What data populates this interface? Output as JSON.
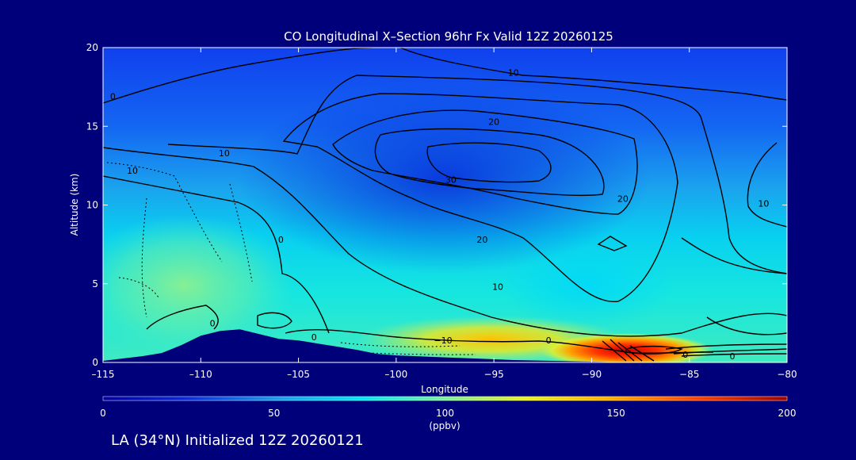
{
  "chart_data": {
    "type": "heatmap",
    "title": "CO Longitudinal X–Section 96hr  Fx Valid 12Z 20260125",
    "xlabel": "Longitude",
    "ylabel": "Altitude (km)",
    "xlim": [
      -115,
      -80
    ],
    "ylim": [
      0,
      20
    ],
    "x_ticks": [
      -115,
      -110,
      -105,
      -100,
      -95,
      -90,
      -85,
      -80
    ],
    "x_tick_labels": [
      "–115",
      "–110",
      "–105",
      "–100",
      "−95",
      "−90",
      "−85",
      "−80"
    ],
    "y_ticks": [
      0,
      5,
      10,
      15,
      20
    ],
    "y_tick_labels": [
      "0",
      "5",
      "10",
      "15",
      "20"
    ],
    "colorbar": {
      "min": 0,
      "max": 200,
      "ticks": [
        0,
        50,
        100,
        150,
        200
      ],
      "tick_labels": [
        "0",
        "50",
        "100",
        "150",
        "200"
      ],
      "units": "(ppbv)"
    },
    "contour_levels": [
      0,
      10,
      20,
      30
    ],
    "contour_labels": [
      {
        "text": "10",
        "lon": -94,
        "alt": 18.2
      },
      {
        "text": "0",
        "lon": -114.5,
        "alt": 16.7
      },
      {
        "text": "10",
        "lon": -108.8,
        "alt": 13.1
      },
      {
        "text": "10",
        "lon": -113.5,
        "alt": 12.0
      },
      {
        "text": "20",
        "lon": -95,
        "alt": 15.1
      },
      {
        "text": "30",
        "lon": -97.2,
        "alt": 11.4
      },
      {
        "text": "20",
        "lon": -88.4,
        "alt": 10.2
      },
      {
        "text": "10",
        "lon": -81.2,
        "alt": 9.9
      },
      {
        "text": "0",
        "lon": -105.9,
        "alt": 7.6
      },
      {
        "text": "20",
        "lon": -95.6,
        "alt": 7.6
      },
      {
        "text": "10",
        "lon": -94.8,
        "alt": 4.6
      },
      {
        "text": "0",
        "lon": -109.4,
        "alt": 2.3
      },
      {
        "text": "0",
        "lon": -104.2,
        "alt": 1.4
      },
      {
        "text": "−10",
        "lon": -97.6,
        "alt": 1.2
      },
      {
        "text": "0",
        "lon": -92.2,
        "alt": 1.2
      },
      {
        "text": "0",
        "lon": -85.2,
        "alt": 0.3
      },
      {
        "text": "0",
        "lon": -82.8,
        "alt": 0.2
      }
    ],
    "terrain": [
      {
        "lon": -115,
        "alt": 0.1
      },
      {
        "lon": -114,
        "alt": 0.25
      },
      {
        "lon": -113,
        "alt": 0.4
      },
      {
        "lon": -112,
        "alt": 0.6
      },
      {
        "lon": -111,
        "alt": 1.1
      },
      {
        "lon": -110,
        "alt": 1.7
      },
      {
        "lon": -109,
        "alt": 2.0
      },
      {
        "lon": -108,
        "alt": 2.1
      },
      {
        "lon": -107,
        "alt": 1.8
      },
      {
        "lon": -106,
        "alt": 1.5
      },
      {
        "lon": -105,
        "alt": 1.4
      },
      {
        "lon": -104,
        "alt": 1.2
      },
      {
        "lon": -103,
        "alt": 1.0
      },
      {
        "lon": -102,
        "alt": 0.8
      },
      {
        "lon": -101,
        "alt": 0.55
      },
      {
        "lon": -100,
        "alt": 0.45
      },
      {
        "lon": -98,
        "alt": 0.35
      },
      {
        "lon": -96,
        "alt": 0.25
      },
      {
        "lon": -94,
        "alt": 0.15
      },
      {
        "lon": -92,
        "alt": 0.1
      },
      {
        "lon": -90,
        "alt": 0.05
      },
      {
        "lon": -88,
        "alt": 0.0
      },
      {
        "lon": -80,
        "alt": 0.0
      }
    ]
  },
  "footer": {
    "caption": "LA (34°N) Initialized 12Z 20260121"
  }
}
